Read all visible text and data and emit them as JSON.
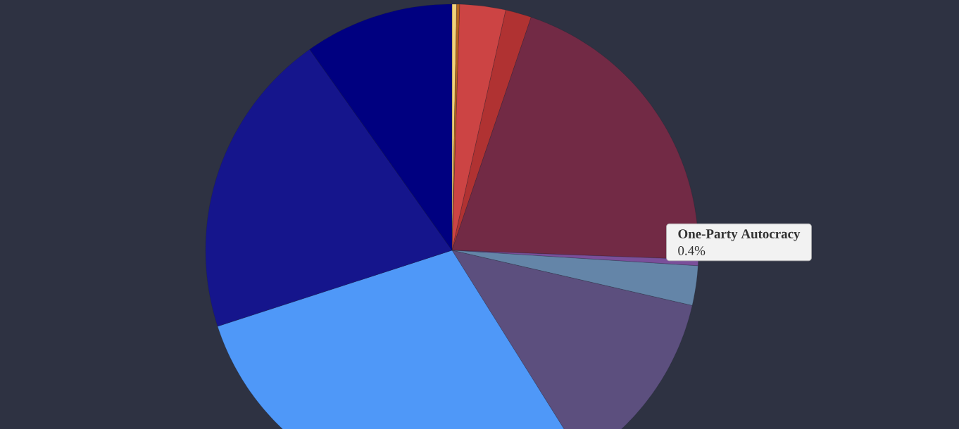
{
  "chart_data": {
    "type": "pie",
    "categories": [
      null,
      null,
      null,
      null,
      null,
      "One-Party Autocracy",
      null,
      null,
      null,
      null,
      null
    ],
    "values": [
      0.3,
      0.2,
      3.0,
      1.7,
      20.4,
      0.4,
      2.6,
      12.5,
      28.9,
      20.2,
      9.8
    ],
    "value_labels": [
      null,
      null,
      null,
      null,
      null,
      "0.4%",
      null,
      null,
      null,
      null,
      null
    ],
    "colors": [
      "#f2d27a",
      "#b5651d",
      "#cc4444",
      "#b03232",
      "#722a45",
      "#7a4f9a",
      "#6485a8",
      "#5c4f7e",
      "#4f98f8",
      "#15158c",
      "#000080"
    ]
  }
}
